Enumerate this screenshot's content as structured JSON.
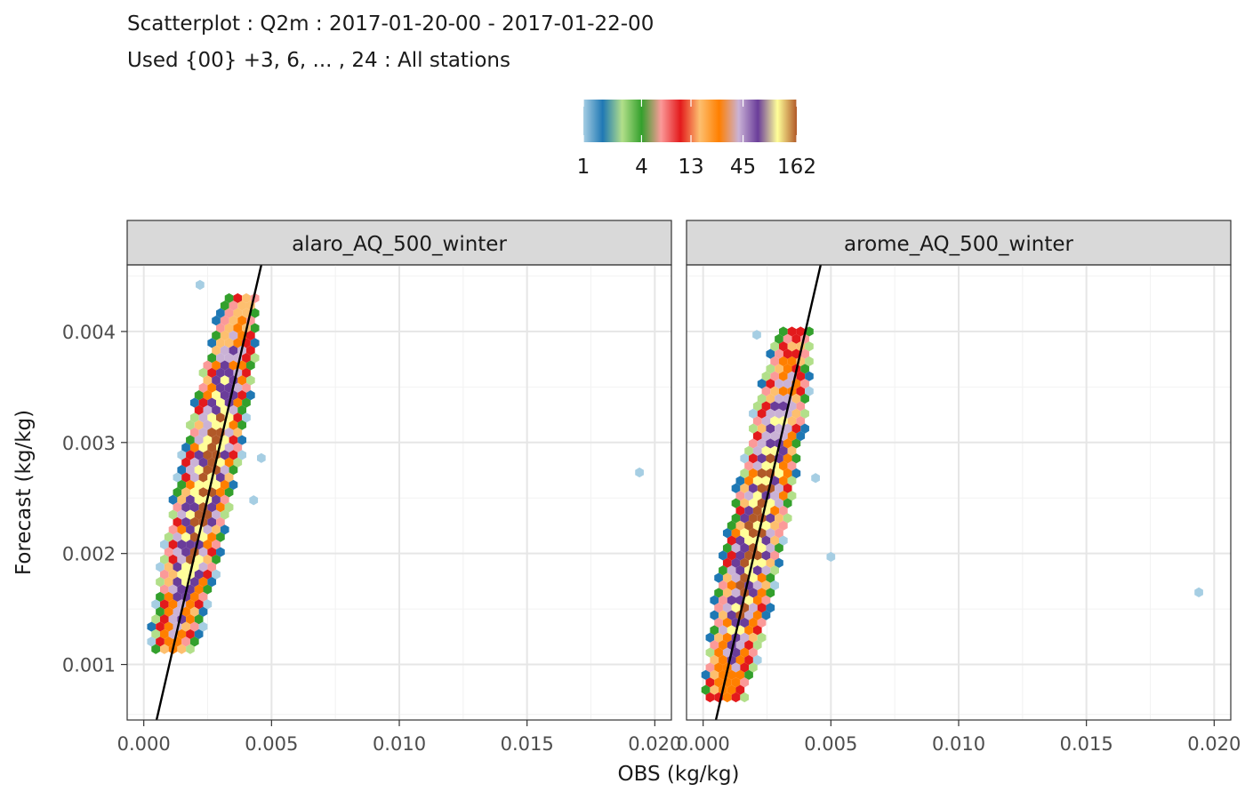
{
  "chart_data": {
    "type": "heatmap",
    "subtype": "hexbin scatterplot with identity line, faceted",
    "title": "Scatterplot : Q2m : 2017-01-20-00 - 2017-01-22-00",
    "subtitle": "Used {00} +3, 6, ... , 24 : All stations",
    "xlabel": "OBS (kg/kg)",
    "ylabel": "Forecast (kg/kg)",
    "xlim": [
      -0.00065,
      0.02065
    ],
    "ylim": [
      0.0005,
      0.0046
    ],
    "x_ticks": [
      0.0,
      0.005,
      0.01,
      0.015,
      0.02
    ],
    "x_tick_labels": [
      "0.000",
      "0.005",
      "0.010",
      "0.015",
      "0.020"
    ],
    "y_ticks": [
      0.001,
      0.002,
      0.003,
      0.004
    ],
    "y_tick_labels": [
      "0.001",
      "0.002",
      "0.003",
      "0.004"
    ],
    "legend": {
      "position": "top",
      "labels": [
        "1",
        "4",
        "13",
        "45",
        "162"
      ],
      "values": [
        1,
        4,
        13,
        45,
        162
      ],
      "scale": "log",
      "colors": [
        "#a6cee3",
        "#1f78b4",
        "#b2df8a",
        "#33a02c",
        "#fb9a99",
        "#e31a1c",
        "#fdbf6f",
        "#ff7f00",
        "#cab2d6",
        "#6a3d9a",
        "#ffff99",
        "#b15928"
      ]
    },
    "identity_line": {
      "slope": 1,
      "intercept": 0,
      "color": "#000000"
    },
    "facets": [
      {
        "label": "alaro_AQ_500_winter",
        "cluster": {
          "x_mean": 0.0024,
          "y_mean": 0.0026,
          "x_sd": 0.00075,
          "y_sd": 0.00075,
          "corr": 0.87,
          "x_min": 0.0003,
          "x_max": 0.0045,
          "y_min": 0.0011,
          "y_max": 0.0043
        },
        "outliers": [
          [
            0.0194,
            0.00273
          ],
          [
            0.0046,
            0.00286
          ],
          [
            0.0043,
            0.00248
          ],
          [
            0.0022,
            0.00442
          ]
        ]
      },
      {
        "label": "arome_AQ_500_winter",
        "cluster": {
          "x_mean": 0.0021,
          "y_mean": 0.0022,
          "x_sd": 0.00075,
          "y_sd": 0.00075,
          "corr": 0.87,
          "x_min": 0.0001,
          "x_max": 0.0042,
          "y_min": 0.0007,
          "y_max": 0.004
        },
        "outliers": [
          [
            0.0194,
            0.00165
          ],
          [
            0.005,
            0.00197
          ],
          [
            0.0044,
            0.00268
          ],
          [
            0.0021,
            0.00397
          ]
        ]
      }
    ]
  }
}
